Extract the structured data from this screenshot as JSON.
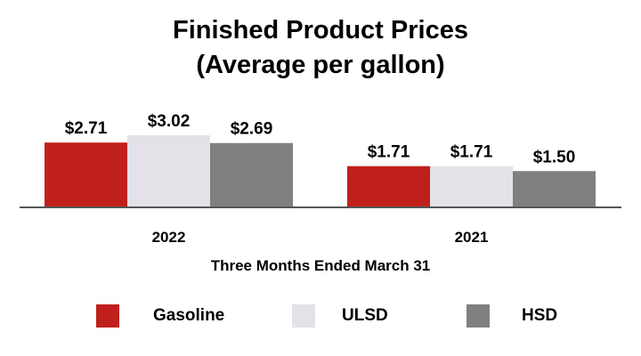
{
  "chart_data": {
    "type": "bar",
    "title": "Finished Product Prices",
    "subtitle": "(Average per gallon)",
    "categories": [
      "2022",
      "2021"
    ],
    "xlabel": "Three Months Ended March 31",
    "ylabel": "",
    "ylim": [
      0,
      3.2
    ],
    "grid": false,
    "legend_position": "bottom",
    "series": [
      {
        "name": "Gasoline",
        "values": [
          2.71,
          1.71
        ],
        "labels": [
          "$2.71",
          "$1.71"
        ],
        "color": "#c0201b"
      },
      {
        "name": "ULSD",
        "values": [
          3.02,
          1.71
        ],
        "labels": [
          "$3.02",
          "$1.71"
        ],
        "color": "#e2e2e8"
      },
      {
        "name": "HSD",
        "values": [
          2.69,
          1.5
        ],
        "labels": [
          "$2.69",
          "$1.50"
        ],
        "color": "#808080"
      }
    ]
  }
}
